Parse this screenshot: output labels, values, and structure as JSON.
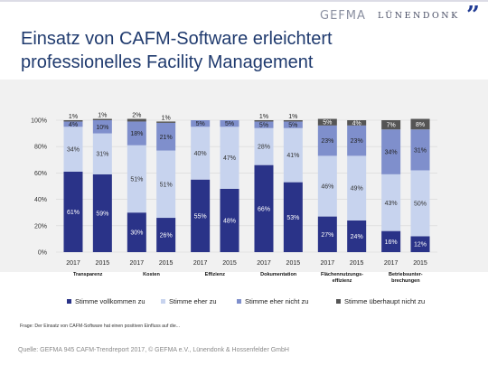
{
  "header": {
    "title_line1": "Einsatz von CAFM-Software erleichtert",
    "title_line2": "professionelles Facility Management",
    "logo_gefma": "GEFMA",
    "logo_luenendonk": "LÜNENDONK",
    "logo_quote": "”"
  },
  "chart_data": {
    "type": "bar",
    "stacked": true,
    "ylim": [
      0,
      100
    ],
    "yticks": [
      "0%",
      "20%",
      "40%",
      "60%",
      "80%",
      "100%"
    ],
    "groups": [
      "Transparenz",
      "Kosten",
      "Effizienz",
      "Dokumentation",
      "Flächennutzungs-effizienz",
      "Betriebsunter-brechungen"
    ],
    "group_lines": [
      [
        "Transparenz"
      ],
      [
        "Kosten"
      ],
      [
        "Effizienz"
      ],
      [
        "Dokumentation"
      ],
      [
        "Flächennutzungs-",
        "effizienz"
      ],
      [
        "Betriebsunter-",
        "brechungen"
      ]
    ],
    "years": [
      "2017",
      "2015"
    ],
    "categories": [
      "Transparenz 2017",
      "Transparenz 2015",
      "Kosten 2017",
      "Kosten 2015",
      "Effizienz 2017",
      "Effizienz 2015",
      "Dokumentation 2017",
      "Dokumentation 2015",
      "Flächennutzungs-effizienz 2017",
      "Flächennutzungs-effizienz 2015",
      "Betriebsunter-brechungen 2017",
      "Betriebsunter-brechungen 2015"
    ],
    "series": [
      {
        "name": "Stimme vollkommen zu",
        "color": "#2a3388",
        "label_color": "#ffffff",
        "values": [
          61,
          59,
          30,
          26,
          55,
          48,
          66,
          53,
          27,
          24,
          16,
          12
        ]
      },
      {
        "name": "Stimme eher zu",
        "color": "#c7d3ee",
        "label_color": "#333333",
        "values": [
          34,
          31,
          51,
          51,
          40,
          47,
          28,
          41,
          46,
          49,
          43,
          50
        ]
      },
      {
        "name": "Stimme eher nicht zu",
        "color": "#7f8fcc",
        "label_color": "#222222",
        "values": [
          4,
          10,
          18,
          21,
          5,
          5,
          5,
          5,
          23,
          23,
          34,
          31
        ]
      },
      {
        "name": "Stimme überhaupt nicht zu",
        "color": "#555555",
        "label_color": "#ffffff",
        "values": [
          1,
          1,
          2,
          1,
          0,
          0,
          1,
          1,
          5,
          4,
          7,
          8
        ]
      }
    ],
    "labels": [
      [
        "61%",
        "59%",
        "30%",
        "26%",
        "55%",
        "48%",
        "66%",
        "53%",
        "27%",
        "24%",
        "16%",
        "12%"
      ],
      [
        "34%",
        "31%",
        "51%",
        "51%",
        "40%",
        "47%",
        "28%",
        "41%",
        "46%",
        "49%",
        "43%",
        "50%"
      ],
      [
        "4%",
        "10%",
        "18%",
        "21%",
        "5%",
        "5%",
        "5%",
        "5%",
        "23%",
        "23%",
        "34%",
        "31%"
      ],
      [
        "1%",
        "1%",
        "2%",
        "1%",
        "",
        "",
        "1%",
        "1%",
        "5%",
        "4%",
        "7%",
        "8%"
      ]
    ],
    "grid": true,
    "legend_position": "bottom"
  },
  "footer": {
    "question": "Frage: Der Einsatz von CAFM-Software hat einen positiven Einfluss auf die...",
    "source": "Quelle: GEFMA 945 CAFM-Trendreport 2017, © GEFMA e.V., Lünendonk & Hossenfelder GmbH"
  }
}
